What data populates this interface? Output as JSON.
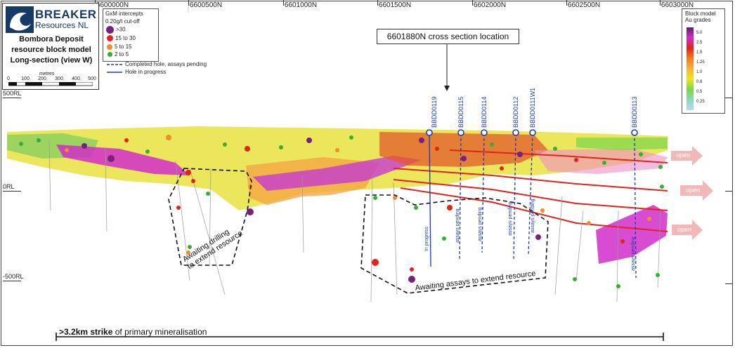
{
  "logo": {
    "brand": "BREAKER",
    "sub": "Resources NL"
  },
  "title": {
    "line1": "Bombora Deposit",
    "line2": "resource block model",
    "line3": "Long-section (view W)"
  },
  "scale_bar": {
    "unit_label": "metres",
    "labels": [
      "0",
      "100",
      "200",
      "300",
      "400",
      "500"
    ]
  },
  "northings": [
    "6600000N",
    "6600500N",
    "6601000N",
    "6601500N",
    "6602000N",
    "6602500N",
    "6603000N"
  ],
  "rl_labels": [
    "500RL",
    "0RL",
    "-500RL"
  ],
  "intercept_legend": {
    "title_line1": "GxM intercepts",
    "title_line2": "0.20g/t cut-off",
    "items": [
      {
        "label": ">30",
        "color": "#7a1f7e"
      },
      {
        "label": "15 to 30",
        "color": "#e2231a"
      },
      {
        "label": "5 to 15",
        "color": "#f28b2a"
      },
      {
        "label": "2 to 5",
        "color": "#35b035"
      }
    ]
  },
  "hole_legend": {
    "completed": "Completed hole, assays pending",
    "in_progress": "Hole in progress"
  },
  "cross_section_callout": "6601880N cross section location",
  "block_model_legend": {
    "title_line1": "Block model",
    "title_line2": "Au grades",
    "grades": [
      "5.0",
      "2.5",
      "1.5",
      "1.25",
      "1.0",
      "0.8",
      "0.5",
      "0.25"
    ]
  },
  "drillholes": [
    "BBDD0119",
    "BBDD0115",
    "BBDD0114",
    "BBDD0112",
    "BBDD0111W1",
    "BBDD0113"
  ],
  "hole_annotations": [
    "In progress",
    "assays pending",
    "assays pending",
    "assays pending",
    "assays pending",
    "assays pending"
  ],
  "open_labels": [
    "open",
    "open",
    "open"
  ],
  "zone_labels": {
    "left_line1": "Awaiting drilling",
    "left_line2": "to extend resource",
    "bottom": "Awaiting assays to extend resource"
  },
  "strike": {
    "bold": ">3.2km strike",
    "rest": " of primary mineralisation"
  },
  "colors": {
    "hole_blue": "#1a3bb5",
    "magenta": "#d12dc9",
    "yellow": "#ece61e",
    "green": "#7bd64a",
    "open_arrow": "#f2b8b8"
  }
}
